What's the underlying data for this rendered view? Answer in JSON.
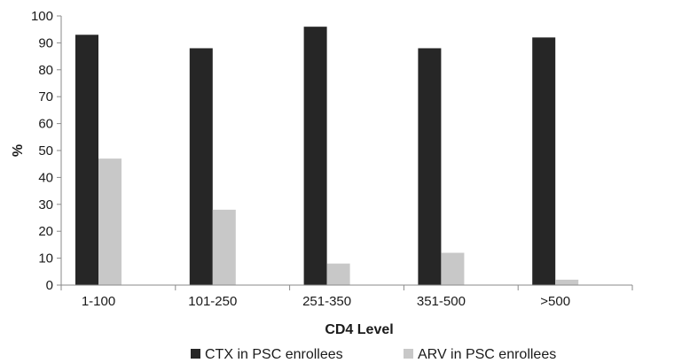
{
  "chart_data": {
    "type": "bar",
    "categories": [
      "1-100",
      "101-250",
      "251-350",
      "351-500",
      ">500"
    ],
    "series": [
      {
        "name": "CTX in PSC enrollees",
        "values": [
          93,
          88,
          96,
          88,
          92
        ],
        "color": "#262626"
      },
      {
        "name": "ARV in PSC enrollees",
        "values": [
          47,
          28,
          8,
          12,
          2
        ],
        "color": "#c8c8c8"
      }
    ],
    "title": "",
    "xlabel": "CD4 Level",
    "ylabel": "%",
    "ylim": [
      0,
      100
    ],
    "yticks": [
      0,
      10,
      20,
      30,
      40,
      50,
      60,
      70,
      80,
      90,
      100
    ],
    "grid": false,
    "legend_position": "bottom"
  }
}
